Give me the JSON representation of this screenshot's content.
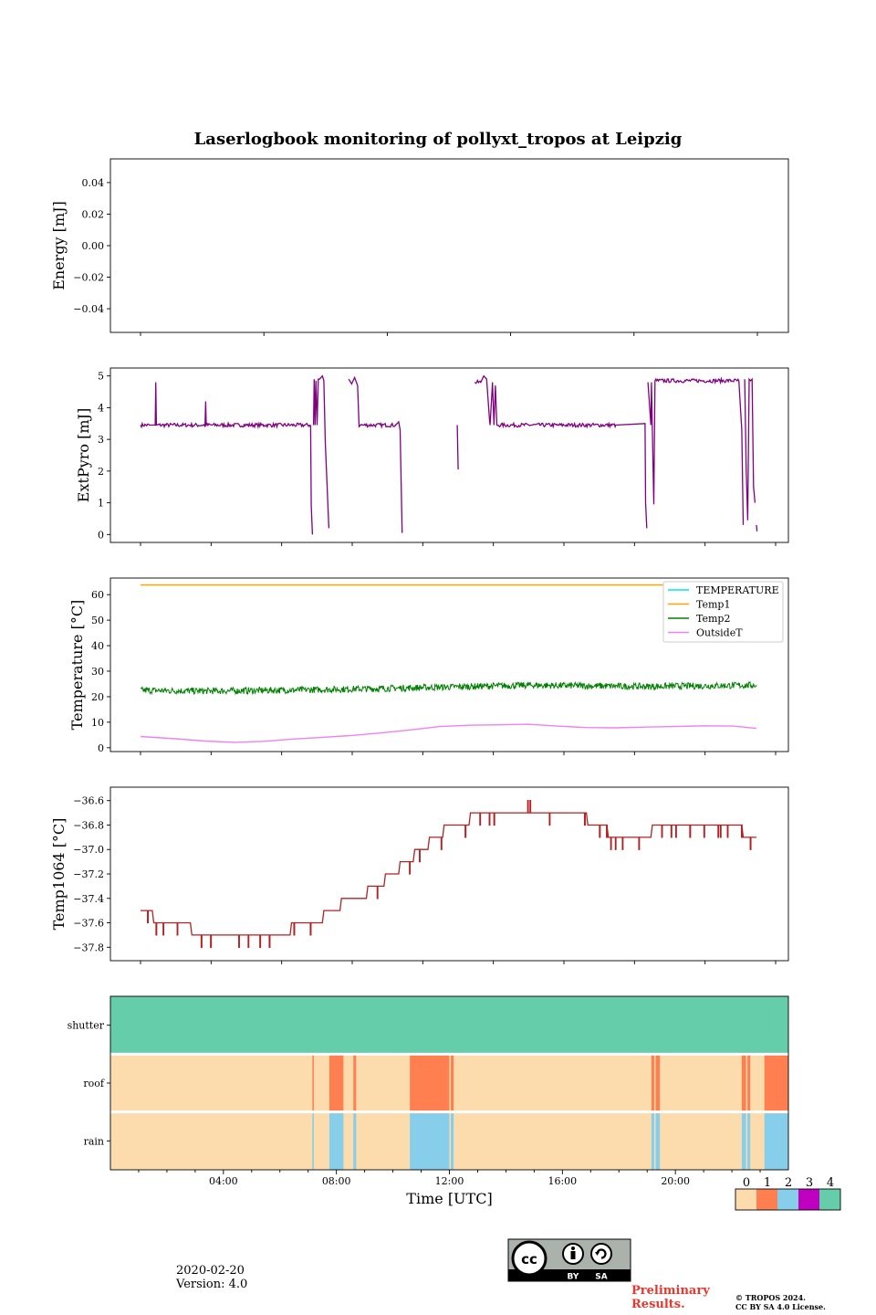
{
  "colors": {
    "extpyro": "#800080",
    "temperature": "#00e5ee",
    "temp1": "#ffa500",
    "temp2": "#008000",
    "outside": "#ee82ee",
    "temp1064": "#b22222",
    "status": [
      "#fcdcad",
      "#ff7f50",
      "#87ceeb",
      "#c000c0",
      "#66cdaa"
    ]
  },
  "license": {
    "by": "BY",
    "sa": "SA"
  },
  "footer": {
    "date": "2020-02-20",
    "version": "Version: 4.0",
    "preliminary_1": "Preliminary",
    "preliminary_2": "Results.",
    "copyright_1": "© TROPOS 2024.",
    "copyright_2": "CC BY SA 4.0 License."
  },
  "chart_data": [
    {
      "type": "line",
      "id": "energy",
      "title": "Laserlogbook monitoring of pollyxt_tropos at Leipzig",
      "ylabel": "Energy [mJ]",
      "ylim": [
        -0.055,
        0.055
      ],
      "yticks": [
        0.04,
        0.02,
        0.0,
        -0.02,
        -0.04
      ],
      "ytick_labels": [
        "0.04",
        "0.02",
        "0.00",
        "−0.02",
        "−0.04"
      ],
      "series": []
    },
    {
      "type": "line",
      "id": "extpyro",
      "ylabel": "ExtPyro [mJ]",
      "ylim": [
        -0.25,
        5.25
      ],
      "yticks": [
        0,
        1,
        2,
        3,
        4,
        5
      ],
      "ytick_labels": [
        "0",
        "1",
        "2",
        "3",
        "4",
        "5"
      ],
      "x_unit": "hours UTC",
      "series": [
        {
          "name": "ExtPyro",
          "segments": [
            [
              [
                0.8,
                3.45
              ],
              [
                1.1,
                3.45
              ],
              [
                1.3,
                3.45
              ],
              [
                1.32,
                4.8
              ],
              [
                1.34,
                3.45
              ],
              [
                3.0,
                3.45
              ],
              [
                3.02,
                4.2
              ],
              [
                3.04,
                3.45
              ],
              [
                5.0,
                3.45
              ],
              [
                6.6,
                3.45
              ],
              [
                6.62,
                0.9
              ],
              [
                6.66,
                0.0
              ]
            ],
            [
              [
                6.7,
                3.45
              ],
              [
                6.72,
                4.9
              ],
              [
                6.75,
                3.45
              ],
              [
                6.78,
                4.85
              ],
              [
                6.82,
                3.45
              ],
              [
                6.86,
                4.9
              ],
              [
                6.9,
                4.9
              ],
              [
                7.0,
                5.0
              ],
              [
                7.05,
                4.85
              ],
              [
                7.1,
                2.9
              ],
              [
                7.22,
                0.2
              ]
            ],
            [
              [
                7.9,
                4.9
              ],
              [
                8.0,
                4.75
              ],
              [
                8.1,
                4.95
              ],
              [
                8.2,
                4.7
              ],
              [
                8.25,
                3.4
              ],
              [
                8.3,
                3.45
              ],
              [
                9.5,
                3.45
              ],
              [
                9.6,
                3.55
              ],
              [
                9.65,
                3.3
              ],
              [
                9.72,
                0.05
              ]
            ],
            [
              [
                11.6,
                3.45
              ],
              [
                11.63,
                2.05
              ]
            ],
            [
              [
                12.2,
                4.8
              ],
              [
                12.4,
                4.8
              ],
              [
                12.5,
                5.0
              ],
              [
                12.6,
                4.9
              ],
              [
                12.7,
                3.6
              ],
              [
                12.72,
                3.45
              ],
              [
                12.8,
                4.8
              ],
              [
                12.85,
                3.45
              ],
              [
                12.9,
                4.7
              ],
              [
                12.95,
                3.45
              ],
              [
                15.0,
                3.45
              ],
              [
                17.0,
                3.45
              ],
              [
                18.0,
                3.5
              ],
              [
                18.02,
                1.0
              ],
              [
                18.06,
                0.2
              ]
            ],
            [
              [
                18.1,
                4.8
              ],
              [
                18.2,
                3.45
              ],
              [
                18.22,
                4.8
              ],
              [
                18.3,
                0.95
              ],
              [
                18.34,
                4.85
              ],
              [
                20.0,
                4.85
              ],
              [
                21.2,
                4.85
              ],
              [
                21.3,
                3.3
              ],
              [
                21.35,
                0.3
              ]
            ],
            [
              [
                21.4,
                4.9
              ],
              [
                21.45,
                2.0
              ],
              [
                21.5,
                0.45
              ],
              [
                21.55,
                4.9
              ],
              [
                21.6,
                4.85
              ],
              [
                21.65,
                4.9
              ],
              [
                21.7,
                1.5
              ],
              [
                21.75,
                1.0
              ]
            ],
            [
              [
                21.8,
                0.3
              ],
              [
                21.82,
                0.1
              ]
            ]
          ]
        }
      ]
    },
    {
      "type": "line",
      "id": "temperature",
      "ylabel": "Temperature [°C]",
      "ylim": [
        -1.5,
        66.5
      ],
      "yticks": [
        0,
        10,
        20,
        30,
        40,
        50,
        60
      ],
      "ytick_labels": [
        "0",
        "10",
        "20",
        "30",
        "40",
        "50",
        "60"
      ],
      "x_unit": "hours UTC",
      "legend": {
        "position": "top-right",
        "entries": [
          "TEMPERATURE",
          "Temp1",
          "Temp2",
          "OutsideT"
        ]
      },
      "series": [
        {
          "name": "TEMPERATURE",
          "points": []
        },
        {
          "name": "Temp1",
          "points": [
            [
              0.8,
              63.8
            ],
            [
              21.8,
              63.8
            ]
          ]
        },
        {
          "name": "Temp2",
          "points": [
            [
              0.8,
              22.5
            ],
            [
              3.0,
              22.2
            ],
            [
              6.0,
              22.6
            ],
            [
              9.0,
              23.2
            ],
            [
              12.0,
              24.0
            ],
            [
              14.0,
              24.5
            ],
            [
              18.0,
              24.0
            ],
            [
              21.8,
              24.5
            ]
          ],
          "noise": 1.3
        },
        {
          "name": "OutsideT",
          "points": [
            [
              0.8,
              4.4
            ],
            [
              2.0,
              3.5
            ],
            [
              3.0,
              2.6
            ],
            [
              4.0,
              2.1
            ],
            [
              5.0,
              2.5
            ],
            [
              6.0,
              3.4
            ],
            [
              7.0,
              4.1
            ],
            [
              8.0,
              4.8
            ],
            [
              9.0,
              5.8
            ],
            [
              10.0,
              7.0
            ],
            [
              11.0,
              8.3
            ],
            [
              12.0,
              8.8
            ],
            [
              13.0,
              9.0
            ],
            [
              14.0,
              9.2
            ],
            [
              15.0,
              8.5
            ],
            [
              16.0,
              7.9
            ],
            [
              17.0,
              7.8
            ],
            [
              18.0,
              8.1
            ],
            [
              19.0,
              8.3
            ],
            [
              20.0,
              8.6
            ],
            [
              21.0,
              8.5
            ],
            [
              21.8,
              7.6
            ]
          ]
        }
      ]
    },
    {
      "type": "line",
      "id": "temp1064",
      "ylabel": "Temp1064 [°C]",
      "ylim": [
        -37.91,
        -36.49
      ],
      "yticks": [
        -36.6,
        -36.8,
        -37.0,
        -37.2,
        -37.4,
        -37.6,
        -37.8
      ],
      "ytick_labels": [
        "−36.6",
        "−36.8",
        "−37.0",
        "−37.2",
        "−37.4",
        "−37.6",
        "−37.8"
      ],
      "x_unit": "hours UTC",
      "series": [
        {
          "name": "Temp1064",
          "points": [
            [
              0.8,
              -37.5
            ],
            [
              1.2,
              -37.5
            ],
            [
              1.25,
              -37.6
            ],
            [
              2.5,
              -37.6
            ],
            [
              2.55,
              -37.7
            ],
            [
              5.9,
              -37.7
            ],
            [
              5.95,
              -37.6
            ],
            [
              7.0,
              -37.6
            ],
            [
              7.05,
              -37.5
            ],
            [
              7.6,
              -37.5
            ],
            [
              7.65,
              -37.4
            ],
            [
              8.5,
              -37.4
            ],
            [
              8.55,
              -37.3
            ],
            [
              9.1,
              -37.3
            ],
            [
              9.15,
              -37.2
            ],
            [
              9.6,
              -37.2
            ],
            [
              9.65,
              -37.1
            ],
            [
              10.1,
              -37.1
            ],
            [
              10.15,
              -37.0
            ],
            [
              10.6,
              -37.0
            ],
            [
              10.65,
              -36.9
            ],
            [
              11.1,
              -36.9
            ],
            [
              11.15,
              -36.8
            ],
            [
              12.0,
              -36.8
            ],
            [
              12.05,
              -36.7
            ],
            [
              13.6,
              -36.7
            ],
            [
              14.5,
              -36.7
            ],
            [
              16.0,
              -36.7
            ],
            [
              16.05,
              -36.8
            ],
            [
              16.7,
              -36.8
            ],
            [
              16.75,
              -36.9
            ],
            [
              18.2,
              -36.9
            ],
            [
              18.25,
              -36.8
            ],
            [
              21.3,
              -36.8
            ],
            [
              21.35,
              -36.9
            ],
            [
              21.8,
              -36.9
            ]
          ]
        }
      ]
    },
    {
      "type": "heatmap",
      "id": "status",
      "rows": [
        "shutter",
        "roof",
        "rain"
      ],
      "x_range_hours": [
        0,
        24
      ],
      "xtick_labels": [
        "04:00",
        "08:00",
        "12:00",
        "16:00",
        "20:00"
      ],
      "xticks_hours": [
        4,
        8,
        12,
        16,
        20
      ],
      "xlabel": "Time [UTC]",
      "colorbar": {
        "levels": [
          0,
          1,
          2,
          3,
          4
        ],
        "labels": [
          "0",
          "1",
          "2",
          "3",
          "4"
        ]
      },
      "shutter": [
        {
          "start": 0,
          "end": 24,
          "value": 4
        }
      ],
      "roof": [
        {
          "start": 7.15,
          "end": 7.2,
          "value": 1
        },
        {
          "start": 7.75,
          "end": 8.25,
          "value": 1
        },
        {
          "start": 8.6,
          "end": 8.7,
          "value": 1
        },
        {
          "start": 10.6,
          "end": 12.0,
          "value": 1
        },
        {
          "start": 12.05,
          "end": 12.15,
          "value": 1
        },
        {
          "start": 19.15,
          "end": 19.25,
          "value": 1
        },
        {
          "start": 19.3,
          "end": 19.45,
          "value": 1
        },
        {
          "start": 22.35,
          "end": 22.5,
          "value": 1
        },
        {
          "start": 22.55,
          "end": 22.65,
          "value": 1
        },
        {
          "start": 23.15,
          "end": 24.0,
          "value": 1
        }
      ],
      "rain": [
        {
          "start": 7.15,
          "end": 7.2,
          "value": 2
        },
        {
          "start": 7.75,
          "end": 8.25,
          "value": 2
        },
        {
          "start": 8.6,
          "end": 8.7,
          "value": 2
        },
        {
          "start": 10.6,
          "end": 12.0,
          "value": 2
        },
        {
          "start": 12.05,
          "end": 12.15,
          "value": 2
        },
        {
          "start": 19.15,
          "end": 19.25,
          "value": 2
        },
        {
          "start": 19.3,
          "end": 19.45,
          "value": 2
        },
        {
          "start": 22.35,
          "end": 22.5,
          "value": 2
        },
        {
          "start": 22.55,
          "end": 22.65,
          "value": 2
        },
        {
          "start": 23.15,
          "end": 24.0,
          "value": 2
        }
      ]
    }
  ]
}
